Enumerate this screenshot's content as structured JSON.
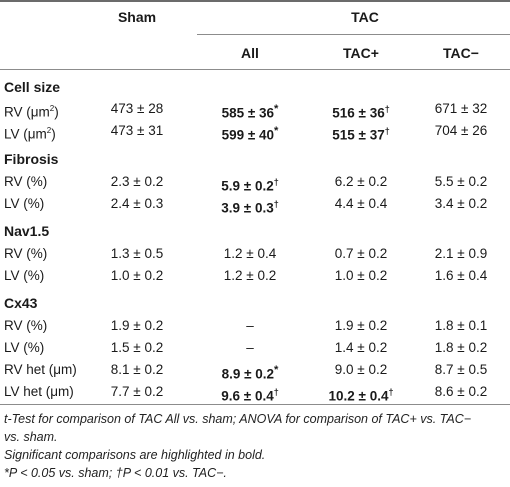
{
  "header": {
    "sham": "Sham",
    "tac": "TAC",
    "all": "All",
    "tac_plus": "TAC+",
    "tac_minus": "TAC−"
  },
  "sections": [
    {
      "title": "Cell size",
      "rows": [
        {
          "label": "RV (μm",
          "label_sup": "2",
          "label_end": ")",
          "sham": "473 ± 28",
          "all": "585 ± 36",
          "all_mark": "*",
          "plus": "516 ± 36",
          "plus_mark": "†",
          "minus": "671 ± 32"
        },
        {
          "label": "LV (μm",
          "label_sup": "2",
          "label_end": ")",
          "sham": "473 ± 31",
          "all": "599 ± 40",
          "all_mark": "*",
          "plus": "515 ± 37",
          "plus_mark": "†",
          "minus": "704 ± 26"
        }
      ]
    },
    {
      "title": "Fibrosis",
      "rows": [
        {
          "label": "RV (%)",
          "sham": "2.3 ± 0.2",
          "all": "5.9 ± 0.2",
          "all_mark": "†",
          "plus": "6.2 ± 0.2",
          "minus": "5.5 ± 0.2"
        },
        {
          "label": "LV (%)",
          "sham": "2.4 ± 0.3",
          "all": "3.9 ± 0.3",
          "all_mark": "†",
          "plus": "4.4 ± 0.4",
          "minus": "3.4 ± 0.2"
        }
      ]
    },
    {
      "title": "Nav1.5",
      "rows": [
        {
          "label": "RV (%)",
          "sham": "1.3 ± 0.5",
          "all": "1.2 ± 0.4",
          "plus": "0.7 ± 0.2",
          "minus": "2.1 ± 0.9"
        },
        {
          "label": "LV (%)",
          "sham": "1.0 ± 0.2",
          "all": "1.2 ± 0.2",
          "plus": "1.0 ± 0.2",
          "minus": "1.6 ± 0.4"
        }
      ]
    },
    {
      "title": "Cx43",
      "rows": [
        {
          "label": "RV (%)",
          "sham": "1.9 ± 0.2",
          "all": "–",
          "plus": "1.9 ± 0.2",
          "minus": "1.8 ± 0.1"
        },
        {
          "label": "LV (%)",
          "sham": "1.5 ± 0.2",
          "all": "–",
          "plus": "1.4 ± 0.2",
          "minus": "1.8 ± 0.2"
        },
        {
          "label": "RV het (μm)",
          "sham": "8.1 ± 0.2",
          "all": "8.9 ± 0.2",
          "all_mark": "*",
          "plus": "9.0 ± 0.2",
          "minus": "8.7 ± 0.5"
        },
        {
          "label": "LV het (μm)",
          "sham": "7.7 ± 0.2",
          "all": "9.6 ± 0.4",
          "all_mark": "†",
          "plus": "10.2 ± 0.4",
          "plus_mark": "†",
          "minus": "8.6 ± 0.2"
        }
      ]
    }
  ],
  "notes": {
    "line1": "t-Test for comparison of TAC All vs. sham; ANOVA for comparison of TAC+ vs. TAC−",
    "line2": "vs. sham.",
    "line3": "Significant comparisons are highlighted in bold.",
    "line4": "*P < 0.05 vs. sham; †P < 0.01 vs. TAC−."
  }
}
